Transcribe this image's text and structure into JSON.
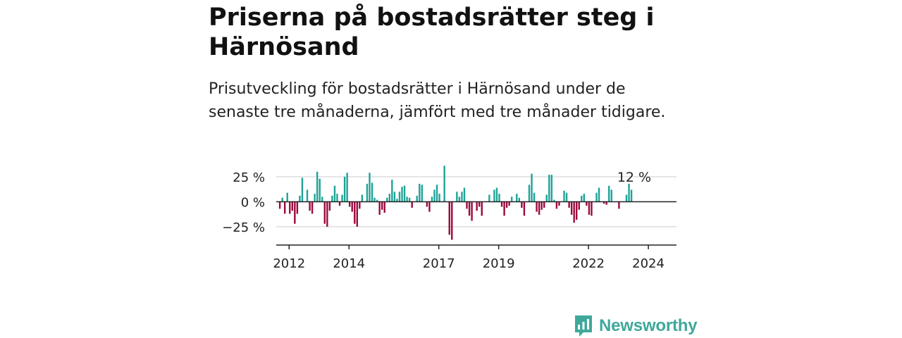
{
  "header": {
    "title": "Priserna på bostadsrätter steg i Härnösand",
    "subtitle": "Prisutveckling för bostadsrätter i Härnösand under de senaste tre månaderna, jämfört med tre månader tidigare."
  },
  "brand": {
    "name": "Newsworthy",
    "icon": "newsworthy-logo-icon"
  },
  "colors": {
    "positive": "#1fa397",
    "negative": "#9b0a3d",
    "grid": "#dddddd",
    "axis": "#222222",
    "brand": "#3fa89b"
  },
  "chart_data": {
    "type": "bar",
    "title": "",
    "xlabel": "",
    "ylabel": "",
    "ylim": [
      -44,
      40
    ],
    "y_ticks": [
      25,
      0,
      -25
    ],
    "y_tick_labels": [
      "25 %",
      "0 %",
      "−25 %"
    ],
    "x_ticks": [
      2012,
      2014,
      2017,
      2019,
      2022,
      2024
    ],
    "x_tick_labels": [
      "2012",
      "2014",
      "2017",
      "2019",
      "2022",
      "2024"
    ],
    "grid": true,
    "x_start": 2011.7,
    "x_step": 0.0833,
    "last_value_label": "12 %",
    "values": [
      -7,
      4,
      -12,
      9,
      -12,
      -9,
      -22,
      -12,
      6,
      24,
      0,
      12,
      -9,
      -12,
      8,
      30,
      23,
      5,
      -22,
      -25,
      -9,
      6,
      16,
      8,
      -4,
      7,
      25,
      29,
      -5,
      -10,
      -22,
      -25,
      -7,
      7,
      0,
      18,
      29,
      19,
      4,
      2,
      -13,
      -8,
      -11,
      4,
      8,
      22,
      10,
      3,
      10,
      15,
      16,
      5,
      4,
      -6,
      0,
      6,
      18,
      17,
      0,
      -5,
      -10,
      5,
      12,
      17,
      8,
      0,
      36,
      0,
      -33,
      -38,
      0,
      10,
      5,
      10,
      14,
      -7,
      -14,
      -19,
      0,
      -9,
      -5,
      -14,
      0,
      0,
      7,
      0,
      12,
      14,
      8,
      -5,
      -14,
      -6,
      -4,
      5,
      0,
      8,
      4,
      -6,
      -14,
      0,
      17,
      28,
      9,
      -10,
      -13,
      -8,
      -6,
      7,
      27,
      27,
      2,
      -7,
      -4,
      0,
      11,
      9,
      -6,
      -13,
      -21,
      -18,
      -8,
      6,
      8,
      -4,
      -13,
      -14,
      0,
      9,
      14,
      0,
      -2,
      -3,
      16,
      12,
      0,
      0,
      -7,
      0,
      0,
      7,
      18,
      12
    ]
  }
}
